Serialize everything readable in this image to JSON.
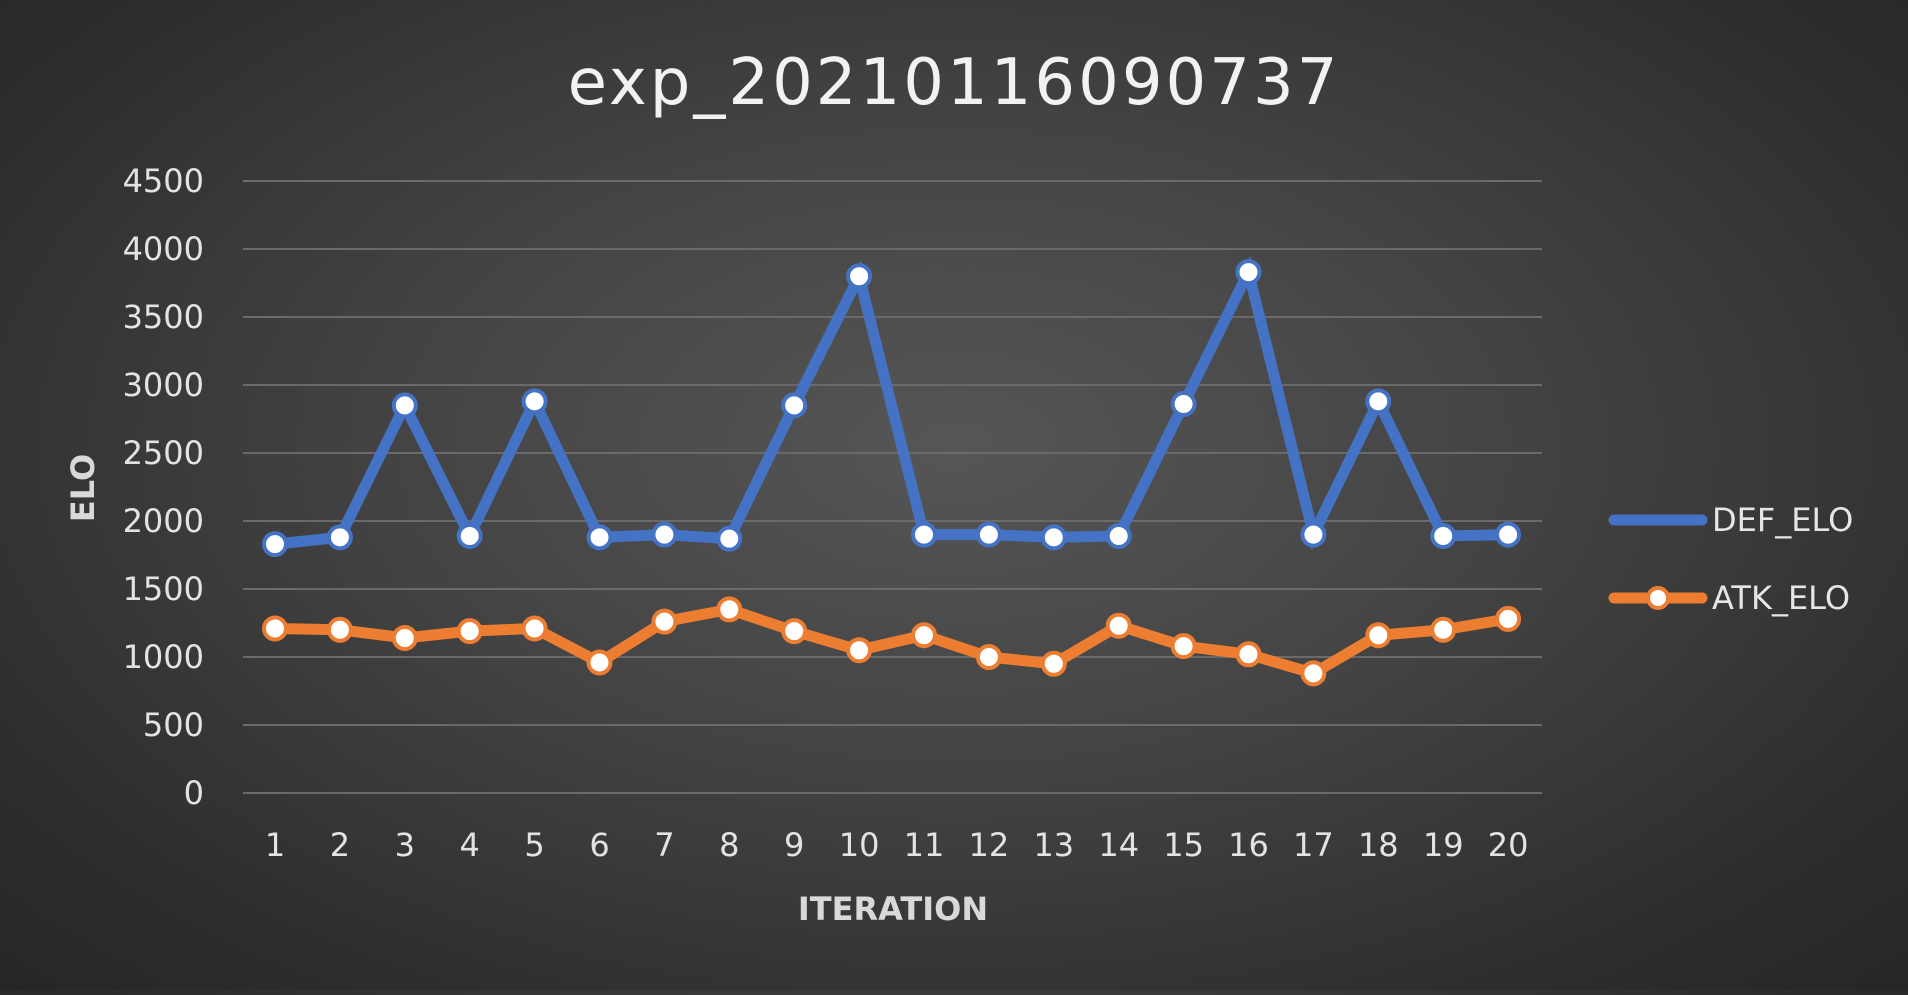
{
  "chart_data": {
    "type": "line",
    "title": "exp_20210116090737",
    "xlabel": "ITERATION",
    "ylabel": "ELO",
    "ylim": [
      0,
      4500
    ],
    "yticks": [
      0,
      500,
      1000,
      1500,
      2000,
      2500,
      3000,
      3500,
      4000,
      4500
    ],
    "grid": true,
    "legend_position": "right",
    "categories": [
      "1",
      "2",
      "3",
      "4",
      "5",
      "6",
      "7",
      "8",
      "9",
      "10",
      "11",
      "12",
      "13",
      "14",
      "15",
      "16",
      "17",
      "18",
      "19",
      "20"
    ],
    "series": [
      {
        "name": "DEF_ELO",
        "color": "#4472c4",
        "values": [
          1830,
          1880,
          2850,
          1890,
          2880,
          1880,
          1900,
          1870,
          2850,
          3800,
          1900,
          1900,
          1880,
          1890,
          2860,
          3830,
          1900,
          2880,
          1890,
          1900
        ]
      },
      {
        "name": "ATK_ELO",
        "color": "#ed7d31",
        "values": [
          1210,
          1200,
          1140,
          1190,
          1210,
          960,
          1260,
          1350,
          1190,
          1050,
          1160,
          1000,
          950,
          1230,
          1080,
          1020,
          880,
          1160,
          1200,
          1280
        ]
      }
    ]
  }
}
